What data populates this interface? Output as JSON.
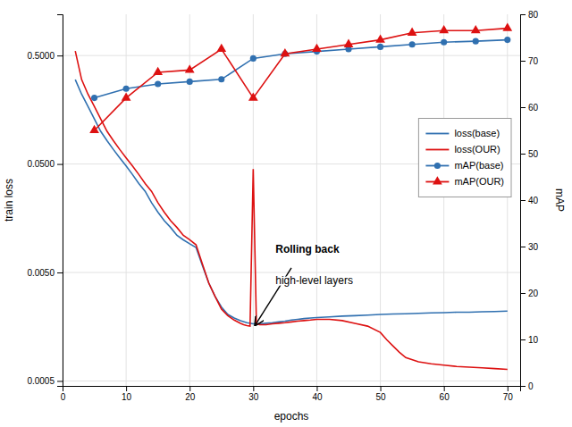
{
  "chart_data": {
    "type": "line",
    "xlabel": "epochs",
    "ylabel": "train loss",
    "y2label": "mAP",
    "log": "y",
    "grid": true,
    "legend": "upper right",
    "xlim": [
      0,
      72
    ],
    "xticks": [
      0,
      10,
      20,
      30,
      40,
      50,
      60,
      70
    ],
    "ylim": [
      0.00045,
      1.2
    ],
    "yticks": [
      0.0005,
      {
        "value": 0.005,
        "label": "0.0050"
      },
      {
        "value": 0.05,
        "label": "0.0500"
      },
      {
        "value": 0.5,
        "label": "0.5000"
      }
    ],
    "y2lim": [
      0,
      80
    ],
    "y2ticks": [
      0,
      10,
      20,
      30,
      40,
      50,
      60,
      70,
      80
    ],
    "series": [
      {
        "name": "loss(base)",
        "color": "#3070b0",
        "axis": "y",
        "x": [
          2,
          3,
          4,
          5,
          6,
          7,
          8,
          9,
          10,
          11,
          12,
          13,
          14,
          15,
          16,
          17,
          18,
          19,
          20,
          21,
          22,
          23,
          24,
          25,
          26,
          27,
          28,
          29,
          30,
          31,
          32,
          33,
          34,
          35,
          36,
          37,
          38,
          39,
          40,
          42,
          44,
          46,
          48,
          50,
          52,
          54,
          56,
          58,
          60,
          62,
          64,
          66,
          68,
          70
        ],
        "values": [
          0.3,
          0.22,
          0.17,
          0.13,
          0.1,
          0.082,
          0.068,
          0.057,
          0.048,
          0.04,
          0.033,
          0.028,
          0.022,
          0.018,
          0.015,
          0.013,
          0.011,
          0.01,
          0.0092,
          0.0085,
          0.0058,
          0.004,
          0.003,
          0.0024,
          0.00205,
          0.0019,
          0.0018,
          0.00172,
          0.00168,
          0.00168,
          0.0017,
          0.00172,
          0.00175,
          0.00178,
          0.00182,
          0.00185,
          0.00188,
          0.0019,
          0.00192,
          0.00195,
          0.00198,
          0.002,
          0.00202,
          0.00205,
          0.00207,
          0.00208,
          0.0021,
          0.00212,
          0.00213,
          0.00215,
          0.00215,
          0.00217,
          0.00218,
          0.0022
        ]
      },
      {
        "name": "loss(OUR)",
        "color": "#dd1111",
        "axis": "y",
        "x": [
          2,
          3,
          4,
          5,
          6,
          7,
          8,
          9,
          10,
          11,
          12,
          13,
          14,
          15,
          16,
          17,
          18,
          19,
          20,
          21,
          22,
          23,
          24,
          25,
          26,
          27,
          28,
          28.5,
          29,
          29.5,
          30,
          30.5,
          31,
          32,
          33,
          34,
          35,
          36,
          37,
          38,
          39,
          40,
          42,
          44,
          46,
          48,
          50,
          51,
          52,
          53,
          54,
          56,
          58,
          60,
          62,
          64,
          66,
          68,
          70
        ],
        "values": [
          0.55,
          0.3,
          0.22,
          0.17,
          0.13,
          0.1,
          0.082,
          0.068,
          0.057,
          0.048,
          0.04,
          0.033,
          0.028,
          0.022,
          0.018,
          0.015,
          0.013,
          0.011,
          0.01,
          0.009,
          0.006,
          0.004,
          0.003,
          0.0023,
          0.002,
          0.00182,
          0.0017,
          0.00165,
          0.00162,
          0.0016,
          0.045,
          0.0017,
          0.00165,
          0.00165,
          0.00168,
          0.0017,
          0.00172,
          0.00175,
          0.00178,
          0.0018,
          0.00182,
          0.00185,
          0.00185,
          0.0018,
          0.0017,
          0.0016,
          0.0014,
          0.0012,
          0.00105,
          0.00092,
          0.00082,
          0.00075,
          0.00072,
          0.0007,
          0.00068,
          0.00067,
          0.00066,
          0.00065,
          0.00064
        ]
      },
      {
        "name": "mAP(base)",
        "color": "#3070b0",
        "axis": "y2",
        "marker": "circle",
        "x": [
          5,
          10,
          15,
          20,
          25,
          30,
          35,
          40,
          45,
          50,
          55,
          60,
          65,
          70
        ],
        "values": [
          62,
          64,
          65,
          65.5,
          66,
          70.5,
          71.5,
          72,
          72.5,
          73,
          73.5,
          74,
          74.2,
          74.5
        ]
      },
      {
        "name": "mAP(OUR)",
        "color": "#dd1111",
        "axis": "y2",
        "marker": "triangle",
        "x": [
          5,
          10,
          15,
          20,
          25,
          30,
          35,
          40,
          45,
          50,
          55,
          60,
          65,
          70
        ],
        "values": [
          55,
          62,
          67.5,
          68,
          72.5,
          62,
          71.5,
          72.5,
          73.5,
          74.5,
          76,
          76.5,
          76.5,
          77
        ]
      }
    ],
    "annotations": [
      {
        "text": "Rolling back",
        "x": 33.5,
        "y": 0.0072
      },
      {
        "text": "high-level layers",
        "x": 33.5,
        "y": 0.0048
      }
    ],
    "arrows": [
      {
        "x": 30.3,
        "y": 0.00163,
        "from_x": 36,
        "from_y": 0.0055
      }
    ]
  }
}
